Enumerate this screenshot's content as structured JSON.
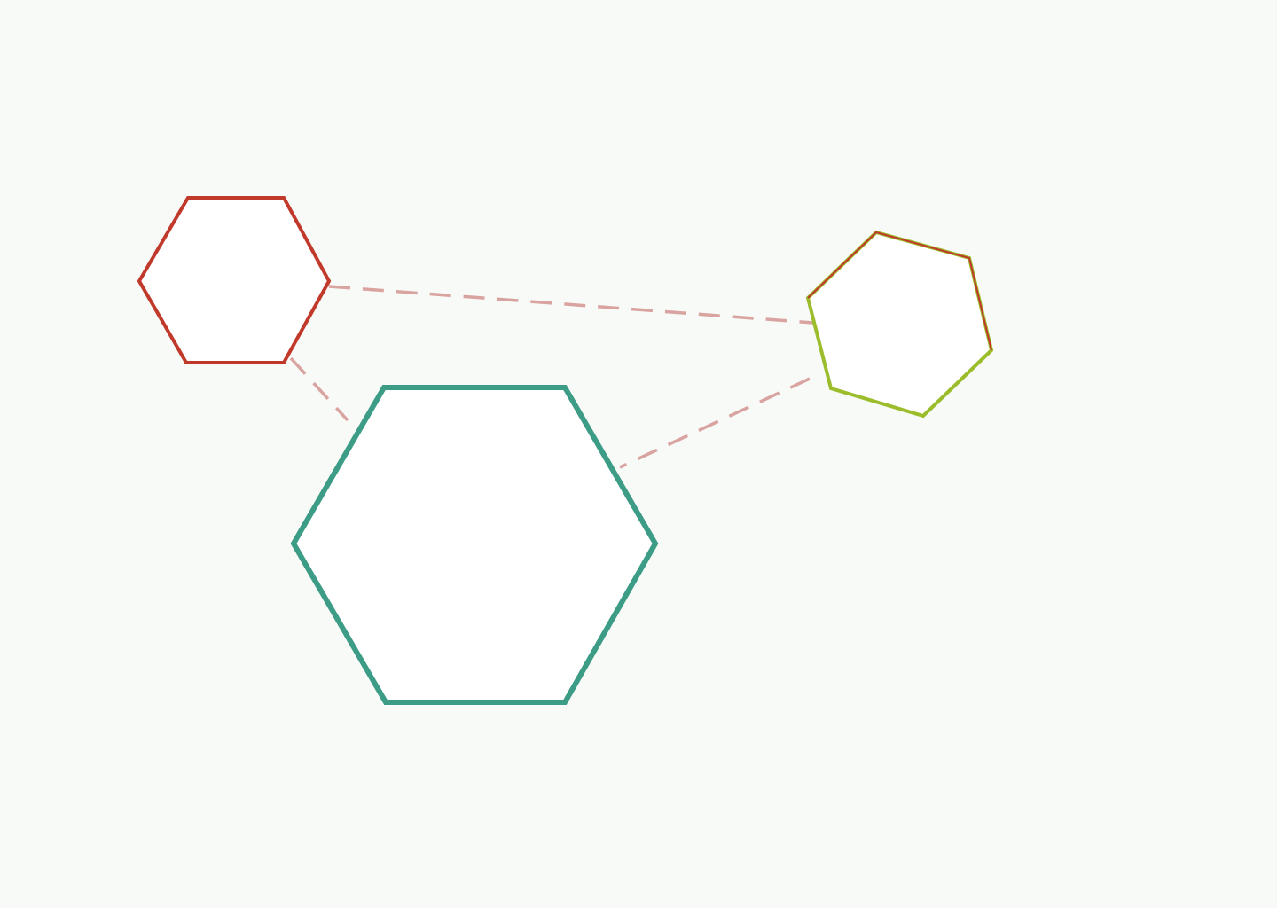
{
  "diagram": {
    "background": "#f8faf8",
    "connector_color": "#d9a3a0",
    "nodes": [
      {
        "id": "hex-red",
        "stroke": "#c0392b",
        "accent": null
      },
      {
        "id": "hex-green",
        "stroke": "#9bbd2b",
        "accent": "#c0392b"
      },
      {
        "id": "hex-teal",
        "stroke": "#3d9c86",
        "accent": null
      }
    ],
    "edges": [
      {
        "from": "hex-red",
        "to": "hex-green"
      },
      {
        "from": "hex-red",
        "to": "hex-teal"
      },
      {
        "from": "hex-green",
        "to": "hex-teal"
      }
    ]
  }
}
